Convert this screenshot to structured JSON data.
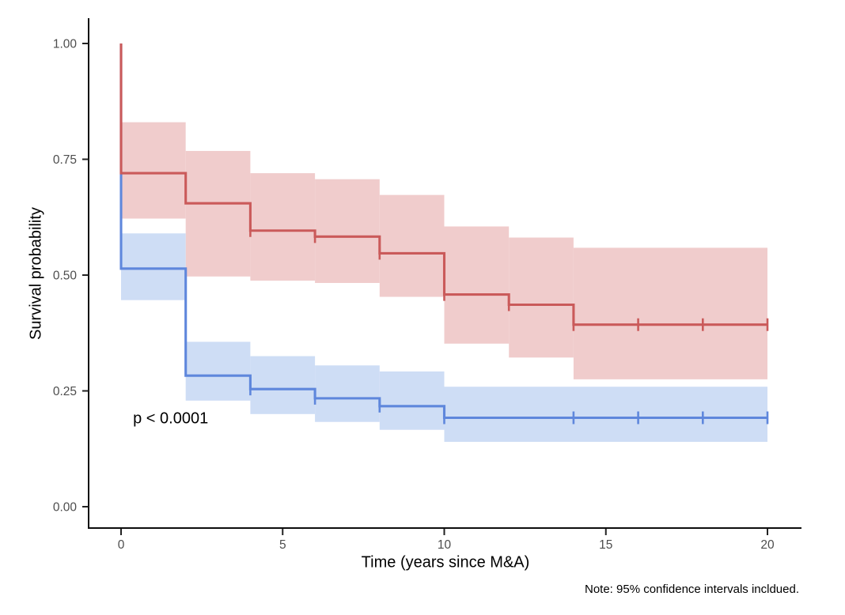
{
  "note": "Note: 95% confidence intervals incldued.",
  "chart_data": {
    "type": "line",
    "subtype": "kaplan-meier-step-with-ci",
    "title": "",
    "xlabel": "Time (years since M&A)",
    "ylabel": "Survival probability",
    "xlim": [
      0,
      20
    ],
    "ylim": [
      0,
      1
    ],
    "x_ticks": [
      0,
      5,
      10,
      15,
      20
    ],
    "y_ticks": [
      0,
      0.25,
      0.5,
      0.75,
      1
    ],
    "y_tick_labels": [
      "0.00",
      "0.25",
      "0.50",
      "0.75",
      "1.00"
    ],
    "grid": false,
    "legend": "none",
    "annotation": {
      "text": "p < 0.0001",
      "t": 0.37,
      "s": 0.18
    },
    "ci_level": "95%",
    "series": [
      {
        "id": "red",
        "line_color": "#CA5A5A",
        "band_color": "#F0CCCC",
        "steps": [
          [
            0,
            1.0
          ],
          [
            0,
            0.72
          ],
          [
            2,
            0.655
          ],
          [
            4,
            0.596
          ],
          [
            6,
            0.583
          ],
          [
            8,
            0.547
          ],
          [
            10,
            0.458
          ],
          [
            12,
            0.436
          ],
          [
            14,
            0.393
          ],
          [
            20,
            0.393
          ]
        ],
        "censors": [
          [
            4,
            0.596
          ],
          [
            6,
            0.583
          ],
          [
            8,
            0.547
          ],
          [
            10,
            0.458
          ],
          [
            12,
            0.436
          ],
          [
            14,
            0.393
          ],
          [
            16,
            0.393
          ],
          [
            18,
            0.393
          ],
          [
            20,
            0.393
          ]
        ],
        "ci": [
          [
            0,
            2,
            0.622,
            0.83
          ],
          [
            2,
            4,
            0.497,
            0.768
          ],
          [
            4,
            6,
            0.488,
            0.72
          ],
          [
            6,
            8,
            0.483,
            0.707
          ],
          [
            8,
            10,
            0.453,
            0.673
          ],
          [
            10,
            12,
            0.352,
            0.605
          ],
          [
            12,
            14,
            0.322,
            0.581
          ],
          [
            14,
            20,
            0.275,
            0.559
          ]
        ]
      },
      {
        "id": "blue",
        "line_color": "#5F87DC",
        "band_color": "#CEDDF5",
        "steps": [
          [
            0,
            1.0
          ],
          [
            0,
            0.514
          ],
          [
            2,
            0.283
          ],
          [
            4,
            0.254
          ],
          [
            6,
            0.234
          ],
          [
            8,
            0.217
          ],
          [
            10,
            0.192
          ],
          [
            20,
            0.192
          ]
        ],
        "censors": [
          [
            4,
            0.254
          ],
          [
            6,
            0.234
          ],
          [
            8,
            0.217
          ],
          [
            10,
            0.192
          ],
          [
            14,
            0.192
          ],
          [
            16,
            0.192
          ],
          [
            18,
            0.192
          ],
          [
            20,
            0.192
          ]
        ],
        "ci": [
          [
            0,
            2,
            0.446,
            0.59
          ],
          [
            2,
            4,
            0.229,
            0.356
          ],
          [
            4,
            6,
            0.2,
            0.325
          ],
          [
            6,
            8,
            0.183,
            0.305
          ],
          [
            8,
            10,
            0.166,
            0.292
          ],
          [
            10,
            20,
            0.14,
            0.259
          ]
        ]
      }
    ]
  }
}
